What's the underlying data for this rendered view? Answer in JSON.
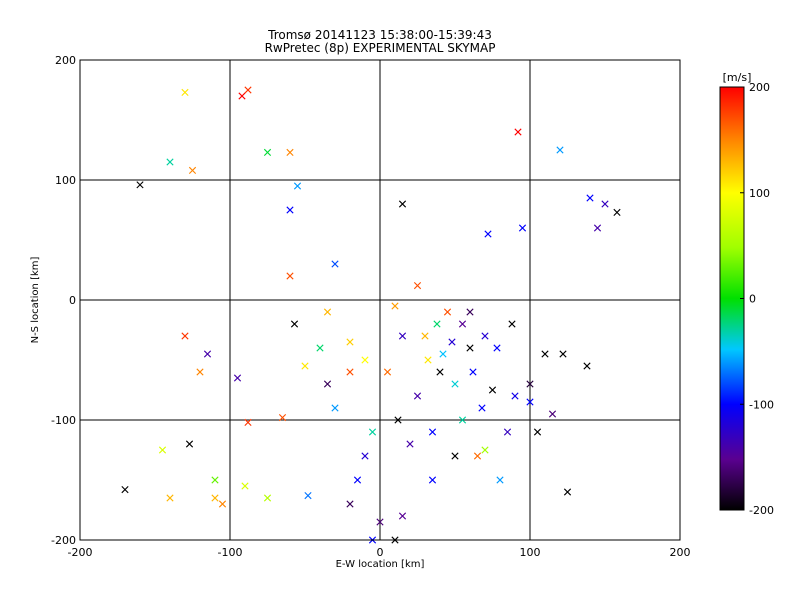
{
  "chart_data": {
    "type": "scatter",
    "title": "Tromsø 20141123 15:38:00-15:39:43",
    "subtitle": "RwPretec (8p) EXPERIMENTAL SKYMAP",
    "xlabel": "E-W location [km]",
    "ylabel": "N-S location [km]",
    "xlim": [
      -200,
      200
    ],
    "ylim": [
      -200,
      200
    ],
    "xticks": [
      "-200",
      "-100",
      "0",
      "100",
      "200"
    ],
    "yticks": [
      "-200",
      "-100",
      "0",
      "100",
      "200"
    ],
    "grid": true,
    "colorbar": {
      "label": "[m/s]",
      "range": [
        -200,
        200
      ],
      "ticks": [
        "200",
        "100",
        "0",
        "-100",
        "-200"
      ],
      "colormap": "black-purple-blue-cyan-green-yellow-orange-red"
    },
    "markers": [
      "x",
      "dot"
    ],
    "points": [
      [
        -160,
        96,
        -200,
        "x"
      ],
      [
        -140,
        115,
        -30,
        "x"
      ],
      [
        -130,
        173,
        110,
        "x"
      ],
      [
        -125,
        108,
        150,
        "x"
      ],
      [
        -120,
        -60,
        150,
        "x"
      ],
      [
        -127,
        -120,
        -200,
        "x"
      ],
      [
        -110,
        -165,
        130,
        "x"
      ],
      [
        -105,
        -170,
        150,
        "x"
      ],
      [
        -95,
        -65,
        -140,
        "x"
      ],
      [
        -90,
        -155,
        80,
        "x"
      ],
      [
        -92,
        170,
        200,
        "x"
      ],
      [
        -88,
        175,
        180,
        "x"
      ],
      [
        -75,
        123,
        -10,
        "x"
      ],
      [
        -60,
        123,
        150,
        "x"
      ],
      [
        -55,
        95,
        -60,
        "x"
      ],
      [
        -60,
        75,
        -100,
        "x"
      ],
      [
        -57,
        -20,
        -200,
        "x"
      ],
      [
        -40,
        -40,
        -20,
        "x"
      ],
      [
        -35,
        -70,
        -170,
        "x"
      ],
      [
        -30,
        -90,
        -60,
        "x"
      ],
      [
        -20,
        -170,
        -170,
        "x"
      ],
      [
        -15,
        -150,
        -100,
        "x"
      ],
      [
        -10,
        -130,
        -120,
        "x"
      ],
      [
        -5,
        -200,
        -100,
        "x"
      ],
      [
        -5,
        -110,
        -30,
        "x"
      ],
      [
        0,
        -185,
        -160,
        "x"
      ],
      [
        5,
        -60,
        160,
        "x"
      ],
      [
        10,
        -200,
        -200,
        "x"
      ],
      [
        10,
        -5,
        140,
        "x"
      ],
      [
        12,
        -100,
        -200,
        "x"
      ],
      [
        15,
        80,
        -200,
        "x"
      ],
      [
        15,
        -30,
        -130,
        "x"
      ],
      [
        20,
        -120,
        -140,
        "x"
      ],
      [
        25,
        -80,
        -140,
        "x"
      ],
      [
        30,
        -30,
        130,
        "x"
      ],
      [
        32,
        -50,
        110,
        "x"
      ],
      [
        35,
        -110,
        -100,
        "x"
      ],
      [
        38,
        -20,
        -20,
        "x"
      ],
      [
        40,
        -60,
        -200,
        "x"
      ],
      [
        42,
        -45,
        -50,
        "x"
      ],
      [
        45,
        -10,
        170,
        "x"
      ],
      [
        48,
        -35,
        -120,
        "x"
      ],
      [
        50,
        -70,
        -40,
        "x"
      ],
      [
        55,
        -20,
        -150,
        "x"
      ],
      [
        55,
        -100,
        -30,
        "x"
      ],
      [
        60,
        -40,
        -200,
        "x"
      ],
      [
        62,
        -60,
        -100,
        "x"
      ],
      [
        65,
        -130,
        160,
        "x"
      ],
      [
        68,
        -90,
        -100,
        "x"
      ],
      [
        70,
        -30,
        -120,
        "x"
      ],
      [
        72,
        55,
        -100,
        "x"
      ],
      [
        75,
        -75,
        -200,
        "x"
      ],
      [
        78,
        -40,
        -100,
        "x"
      ],
      [
        80,
        -150,
        -60,
        "x"
      ],
      [
        85,
        -110,
        -130,
        "x"
      ],
      [
        88,
        -20,
        -200,
        "x"
      ],
      [
        90,
        -80,
        -110,
        "x"
      ],
      [
        92,
        140,
        200,
        "x"
      ],
      [
        95,
        60,
        -100,
        "x"
      ],
      [
        100,
        -85,
        -100,
        "x"
      ],
      [
        105,
        -110,
        -200,
        "x"
      ],
      [
        110,
        -45,
        -200,
        "x"
      ],
      [
        115,
        -95,
        -160,
        "x"
      ],
      [
        122,
        -45,
        -200,
        "x"
      ],
      [
        120,
        125,
        -60,
        "x"
      ],
      [
        125,
        -160,
        -200,
        "x"
      ],
      [
        138,
        -55,
        -200,
        "x"
      ],
      [
        140,
        85,
        -100,
        "x"
      ],
      [
        145,
        60,
        -140,
        "x"
      ],
      [
        150,
        80,
        -130,
        "x"
      ],
      [
        158,
        73,
        -200,
        "x"
      ],
      [
        -88,
        -102,
        180,
        "x"
      ],
      [
        -110,
        -150,
        30,
        "x"
      ],
      [
        -60,
        20,
        170,
        "x"
      ],
      [
        -30,
        30,
        -80,
        "x"
      ],
      [
        -130,
        -30,
        180,
        "x"
      ],
      [
        -115,
        -45,
        -140,
        "x"
      ],
      [
        -50,
        -55,
        110,
        "x"
      ],
      [
        -65,
        -98,
        170,
        "x"
      ],
      [
        -48,
        -163,
        -70,
        "x"
      ],
      [
        -170,
        -158,
        -200,
        "x"
      ],
      [
        -145,
        -125,
        80,
        "x"
      ],
      [
        -140,
        -165,
        130,
        "x"
      ],
      [
        -75,
        -165,
        60,
        "x"
      ],
      [
        -20,
        -60,
        170,
        "x"
      ],
      [
        15,
        -180,
        -150,
        "x"
      ],
      [
        50,
        -130,
        -200,
        "x"
      ],
      [
        35,
        -150,
        -100,
        "x"
      ],
      [
        70,
        -125,
        50,
        "x"
      ],
      [
        100,
        -70,
        -180,
        "x"
      ],
      [
        25,
        12,
        170,
        "x"
      ],
      [
        -20,
        -35,
        120,
        "x"
      ],
      [
        -35,
        -10,
        130,
        "x"
      ],
      [
        -10,
        -50,
        100,
        "x"
      ],
      [
        60,
        -10,
        -170,
        "x"
      ]
    ]
  }
}
